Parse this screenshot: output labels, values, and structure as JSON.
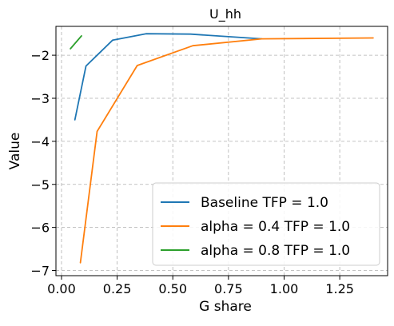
{
  "chart_data": {
    "type": "line",
    "title": "U_hh",
    "xlabel": "G share",
    "ylabel": "Value",
    "xlim": [
      -0.025,
      1.465
    ],
    "ylim": [
      -7.12,
      -1.33
    ],
    "x_ticks": [
      0.0,
      0.25,
      0.5,
      0.75,
      1.0,
      1.25
    ],
    "x_tick_labels": [
      "0.00",
      "0.25",
      "0.50",
      "0.75",
      "1.00",
      "1.25"
    ],
    "y_ticks": [
      -7,
      -6,
      -5,
      -4,
      -3,
      -2
    ],
    "y_tick_labels": [
      "−7",
      "−6",
      "−5",
      "−4",
      "−3",
      "−2"
    ],
    "grid": true,
    "legend_position": "lower-right",
    "series": [
      {
        "name": "Baseline TFP = 1.0",
        "color": "#1f77b4",
        "x": [
          0.06,
          0.11,
          0.23,
          0.38,
          0.58,
          0.9
        ],
        "y": [
          -3.5,
          -2.25,
          -1.65,
          -1.5,
          -1.51,
          -1.62
        ]
      },
      {
        "name": "alpha = 0.4 TFP = 1.0",
        "color": "#ff7f0e",
        "x": [
          0.085,
          0.16,
          0.34,
          0.59,
          0.9,
          1.4
        ],
        "y": [
          -6.82,
          -3.77,
          -2.24,
          -1.78,
          -1.62,
          -1.6
        ]
      },
      {
        "name": "alpha = 0.8 TFP = 1.0",
        "color": "#2ca02c",
        "x": [
          0.04,
          0.09
        ],
        "y": [
          -1.85,
          -1.55
        ]
      }
    ]
  }
}
